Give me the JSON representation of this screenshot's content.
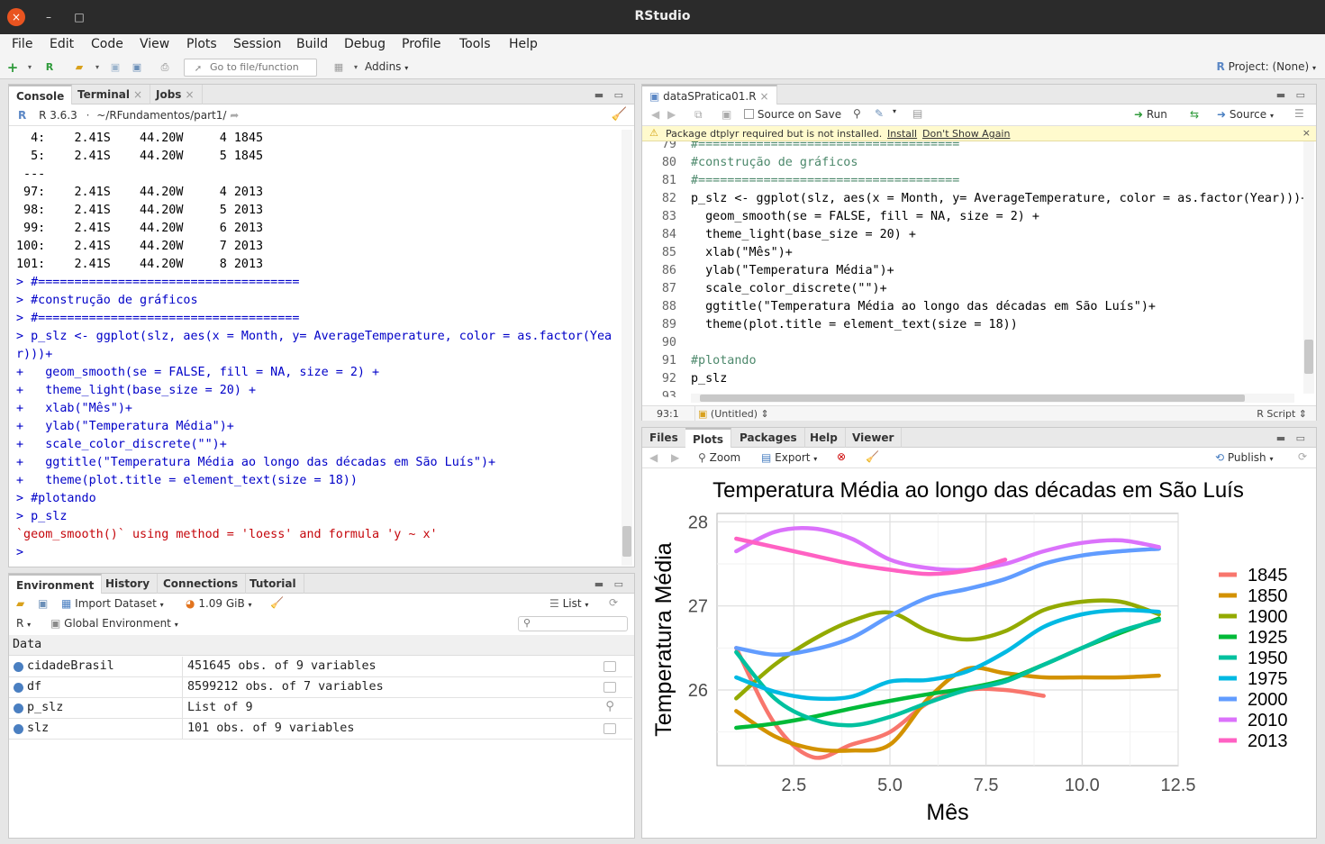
{
  "window": {
    "title": "RStudio",
    "close": "×",
    "minimize": "–",
    "maximize": "□"
  },
  "menu": [
    "File",
    "Edit",
    "Code",
    "View",
    "Plots",
    "Session",
    "Build",
    "Debug",
    "Profile",
    "Tools",
    "Help"
  ],
  "toolbar": {
    "goto_placeholder": "Go to file/function",
    "addins": "Addins",
    "project": "Project: (None)"
  },
  "console_pane": {
    "tabs": [
      "Console",
      "Terminal",
      "Jobs"
    ],
    "r_version": "R 3.6.3",
    "path": "~/RFundamentos/part1/",
    "lines": [
      {
        "t": "  4:    2.41S    44.20W     4 1845",
        "k": "out"
      },
      {
        "t": "  5:    2.41S    44.20W     5 1845",
        "k": "out"
      },
      {
        "t": " ---",
        "k": "out"
      },
      {
        "t": " 97:    2.41S    44.20W     4 2013",
        "k": "out"
      },
      {
        "t": " 98:    2.41S    44.20W     5 2013",
        "k": "out"
      },
      {
        "t": " 99:    2.41S    44.20W     6 2013",
        "k": "out"
      },
      {
        "t": "100:    2.41S    44.20W     7 2013",
        "k": "out"
      },
      {
        "t": "101:    2.41S    44.20W     8 2013",
        "k": "out"
      },
      {
        "t": "> #====================================",
        "k": "cmd"
      },
      {
        "t": "> #construção de gráficos",
        "k": "cmd"
      },
      {
        "t": "> #====================================",
        "k": "cmd"
      },
      {
        "t": "> p_slz <- ggplot(slz, aes(x = Month, y= AverageTemperature, color = as.factor(Yea",
        "k": "cmd"
      },
      {
        "t": "r)))+",
        "k": "cmd"
      },
      {
        "t": "+   geom_smooth(se = FALSE, fill = NA, size = 2) +",
        "k": "cmd"
      },
      {
        "t": "+   theme_light(base_size = 20) +",
        "k": "cmd"
      },
      {
        "t": "+   xlab(\"Mês\")+",
        "k": "cmd"
      },
      {
        "t": "+   ylab(\"Temperatura Média\")+",
        "k": "cmd"
      },
      {
        "t": "+   scale_color_discrete(\"\")+",
        "k": "cmd"
      },
      {
        "t": "+   ggtitle(\"Temperatura Média ao longo das décadas em São Luís\")+",
        "k": "cmd"
      },
      {
        "t": "+   theme(plot.title = element_text(size = 18))",
        "k": "cmd"
      },
      {
        "t": "> #plotando",
        "k": "cmd"
      },
      {
        "t": "> p_slz",
        "k": "cmd"
      },
      {
        "t": "`geom_smooth()` using method = 'loess' and formula 'y ~ x'",
        "k": "msg"
      },
      {
        "t": "> ",
        "k": "cmd"
      }
    ]
  },
  "editor_pane": {
    "file_tab": "dataSPratica01.R",
    "source_on_save": "Source on Save",
    "run": "Run",
    "source": "Source",
    "warning": "Package dtplyr required but is not installed.",
    "install": "Install",
    "dont_show": "Don't Show Again",
    "lines": [
      {
        "n": "79",
        "c": "#====================================",
        "k": "cmt"
      },
      {
        "n": "80",
        "c": "#construção de gráficos",
        "k": "cmt"
      },
      {
        "n": "81",
        "c": "#====================================",
        "k": "cmt"
      },
      {
        "n": "82",
        "c": "p_slz <- ggplot(slz, aes(x = Month, y= AverageTemperature, color = as.factor(Year)))+",
        "k": "code"
      },
      {
        "n": "83",
        "c": "  geom_smooth(se = FALSE, fill = NA, size = 2) +",
        "k": "code"
      },
      {
        "n": "84",
        "c": "  theme_light(base_size = 20) +",
        "k": "code"
      },
      {
        "n": "85",
        "c": "  xlab(\"Mês\")+",
        "k": "code"
      },
      {
        "n": "86",
        "c": "  ylab(\"Temperatura Média\")+",
        "k": "code"
      },
      {
        "n": "87",
        "c": "  scale_color_discrete(\"\")+",
        "k": "code"
      },
      {
        "n": "88",
        "c": "  ggtitle(\"Temperatura Média ao longo das décadas em São Luís\")+",
        "k": "code"
      },
      {
        "n": "89",
        "c": "  theme(plot.title = element_text(size = 18))",
        "k": "code"
      },
      {
        "n": "90",
        "c": "",
        "k": "code"
      },
      {
        "n": "91",
        "c": "#plotando",
        "k": "cmt"
      },
      {
        "n": "92",
        "c": "p_slz",
        "k": "code"
      },
      {
        "n": "93",
        "c": "",
        "k": "code"
      }
    ],
    "status_pos": "93:1",
    "status_scope": "(Untitled)",
    "status_type": "R Script"
  },
  "env_pane": {
    "tabs": [
      "Environment",
      "History",
      "Connections",
      "Tutorial"
    ],
    "import_dataset": "Import Dataset",
    "memory": "1.09 GiB",
    "list_view": "List",
    "lang": "R",
    "scope": "Global Environment",
    "section": "Data",
    "rows": [
      {
        "name": "cidadeBrasil",
        "value": "451645 obs. of 9 variables"
      },
      {
        "name": "df",
        "value": "8599212 obs. of 7 variables"
      },
      {
        "name": "p_slz",
        "value": "List of  9"
      },
      {
        "name": "slz",
        "value": "101 obs. of 9 variables"
      }
    ]
  },
  "files_pane": {
    "tabs": [
      "Files",
      "Plots",
      "Packages",
      "Help",
      "Viewer"
    ],
    "zoom": "Zoom",
    "export": "Export",
    "publish": "Publish"
  },
  "chart_data": {
    "type": "line",
    "title": "Temperatura Média ao longo das décadas em São Luís",
    "xlabel": "Mês",
    "ylabel": "Temperatura Média",
    "xlim": [
      0.5,
      12.5
    ],
    "ylim": [
      25.1,
      28.1
    ],
    "xticks": [
      "2.5",
      "5.0",
      "7.5",
      "10.0",
      "12.5"
    ],
    "yticks": [
      "26",
      "27",
      "28"
    ],
    "grid": true,
    "legend": "right",
    "series": [
      {
        "name": "1845",
        "color": "#F8766D",
        "x": [
          1,
          2,
          3,
          4,
          5,
          6,
          7,
          8,
          9
        ],
        "y": [
          26.5,
          25.6,
          25.2,
          25.35,
          25.5,
          25.85,
          26.0,
          26.0,
          25.93
        ]
      },
      {
        "name": "1850",
        "color": "#D39200",
        "x": [
          1,
          2,
          3,
          4,
          5,
          6,
          7,
          8,
          9,
          10,
          11,
          12
        ],
        "y": [
          25.75,
          25.45,
          25.3,
          25.28,
          25.35,
          25.9,
          26.25,
          26.2,
          26.15,
          26.15,
          26.15,
          26.17
        ]
      },
      {
        "name": "1900",
        "color": "#93AA00",
        "x": [
          1,
          2,
          3,
          4,
          5,
          6,
          7,
          8,
          9,
          10,
          11,
          12
        ],
        "y": [
          25.9,
          26.3,
          26.6,
          26.82,
          26.92,
          26.7,
          26.6,
          26.7,
          26.95,
          27.05,
          27.05,
          26.9
        ]
      },
      {
        "name": "1925",
        "color": "#00BA38",
        "x": [
          1,
          2,
          3,
          4,
          5,
          6,
          7,
          8,
          9,
          10,
          11,
          12
        ],
        "y": [
          25.55,
          25.6,
          25.68,
          25.78,
          25.87,
          25.95,
          26.02,
          26.12,
          26.3,
          26.5,
          26.68,
          26.85
        ]
      },
      {
        "name": "1950",
        "color": "#00C19F",
        "x": [
          1,
          2,
          3,
          4,
          5,
          6,
          7,
          8,
          9,
          10,
          11,
          12
        ],
        "y": [
          26.45,
          25.9,
          25.65,
          25.58,
          25.68,
          25.85,
          26.0,
          26.1,
          26.3,
          26.5,
          26.7,
          26.83
        ]
      },
      {
        "name": "1975",
        "color": "#00B9E3",
        "x": [
          1,
          2,
          3,
          4,
          5,
          6,
          7,
          8,
          9,
          10,
          11,
          12
        ],
        "y": [
          26.15,
          25.98,
          25.9,
          25.92,
          26.1,
          26.12,
          26.22,
          26.45,
          26.75,
          26.9,
          26.95,
          26.93
        ]
      },
      {
        "name": "2000",
        "color": "#619CFF",
        "x": [
          1,
          2,
          3,
          4,
          5,
          6,
          7,
          8,
          9,
          10,
          11,
          12
        ],
        "y": [
          26.5,
          26.42,
          26.48,
          26.62,
          26.88,
          27.1,
          27.2,
          27.32,
          27.5,
          27.6,
          27.65,
          27.68
        ]
      },
      {
        "name": "2010",
        "color": "#DB72FB",
        "x": [
          1,
          2,
          3,
          4,
          5,
          6,
          7,
          8,
          9,
          10,
          11,
          12
        ],
        "y": [
          27.65,
          27.88,
          27.92,
          27.8,
          27.55,
          27.45,
          27.43,
          27.5,
          27.65,
          27.75,
          27.78,
          27.7
        ]
      },
      {
        "name": "2013",
        "color": "#FF61C3",
        "x": [
          1,
          2,
          3,
          4,
          5,
          6,
          7,
          8
        ],
        "y": [
          27.8,
          27.7,
          27.6,
          27.5,
          27.43,
          27.38,
          27.42,
          27.55
        ]
      }
    ]
  }
}
